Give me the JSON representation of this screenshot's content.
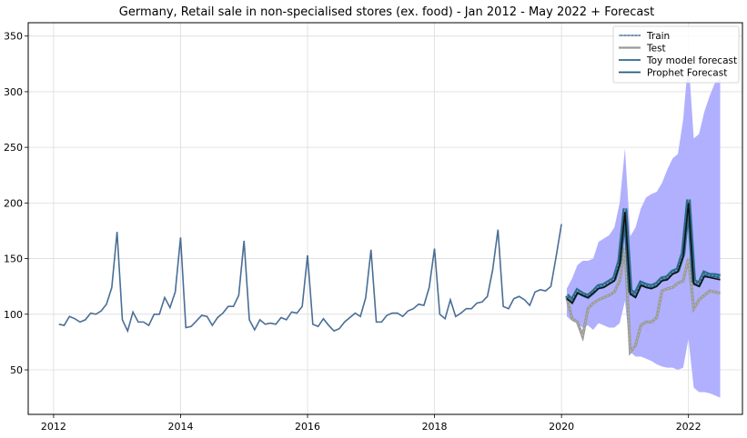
{
  "chart_data": {
    "type": "line",
    "title": "Germany, Retail sale in non-specialised stores (ex. food) - Jan 2012 - May 2022 + Forecast",
    "xlabel": "",
    "ylabel": "",
    "xlim": [
      2011.6,
      2022.85
    ],
    "ylim": [
      10,
      362
    ],
    "x_ticks": [
      2012,
      2014,
      2016,
      2018,
      2020,
      2022
    ],
    "y_ticks": [
      50,
      100,
      150,
      200,
      250,
      300,
      350
    ],
    "grid": true,
    "legend_position": "top-right",
    "legend": [
      "Train",
      "Test",
      "Toy model forecast",
      "Prophet Forecast"
    ],
    "colors": {
      "train": "#4a6e96",
      "test": "#9a9a9a",
      "toy": "#2c6a8c",
      "prophet": "#1f5a80",
      "interval": "#b0b0ff",
      "black_forecast": "#111111"
    },
    "series": [
      {
        "name": "Train",
        "x_start": 2012.083,
        "x_step": 0.08333,
        "values": [
          91,
          90,
          98,
          96,
          93,
          95,
          101,
          100,
          103,
          109,
          124,
          174,
          95,
          85,
          102,
          93,
          93,
          90,
          100,
          100,
          115,
          106,
          120,
          169,
          88,
          89,
          94,
          99,
          98,
          90,
          97,
          101,
          107,
          107,
          117,
          166,
          95,
          86,
          95,
          91,
          92,
          91,
          97,
          95,
          102,
          101,
          107,
          153,
          91,
          89,
          96,
          90,
          85,
          87,
          93,
          97,
          101,
          98,
          115,
          158,
          93,
          93,
          99,
          101,
          101,
          98,
          103,
          105,
          109,
          108,
          124,
          159,
          100,
          96,
          113,
          98,
          101,
          105,
          105,
          110,
          111,
          116,
          140,
          176,
          107,
          105,
          114,
          116,
          113,
          108,
          120,
          122,
          121,
          125,
          152,
          181
        ]
      },
      {
        "name": "Test",
        "x_start": 2020.083,
        "x_step": 0.08333,
        "values": [
          115,
          96,
          93,
          80,
          105,
          110,
          113,
          115,
          117,
          120,
          130,
          160,
          66,
          72,
          90,
          93,
          93,
          97,
          121,
          123,
          124,
          128,
          130,
          150,
          105,
          113,
          117,
          121,
          120,
          119
        ]
      },
      {
        "name": "Toy model forecast",
        "x_start": 2020.083,
        "x_step": 0.08333,
        "values": [
          117,
          112,
          121,
          118,
          116,
          120,
          125,
          126,
          129,
          132,
          148,
          195,
          121,
          118,
          128,
          126,
          125,
          127,
          132,
          133,
          138,
          140,
          155,
          203,
          130,
          127,
          137,
          135,
          135,
          134
        ]
      },
      {
        "name": "Prophet Forecast",
        "x_start": 2020.083,
        "x_step": 0.08333,
        "values": [
          114,
          110,
          119,
          117,
          115,
          119,
          123,
          124,
          127,
          130,
          145,
          192,
          118,
          115,
          126,
          124,
          123,
          125,
          130,
          131,
          136,
          138,
          152,
          200,
          127,
          125,
          134,
          133,
          132,
          131
        ]
      }
    ],
    "confidence_interval": {
      "x_start": 2020.083,
      "x_step": 0.08333,
      "upper": [
        123,
        132,
        144,
        148,
        148,
        150,
        165,
        168,
        171,
        178,
        200,
        249,
        170,
        178,
        195,
        205,
        208,
        210,
        218,
        230,
        240,
        244,
        275,
        330,
        258,
        262,
        282,
        296,
        308,
        312
      ],
      "lower": [
        98,
        94,
        92,
        88,
        90,
        86,
        92,
        90,
        88,
        88,
        92,
        112,
        66,
        62,
        62,
        60,
        58,
        55,
        53,
        52,
        52,
        50,
        52,
        78,
        34,
        30,
        30,
        29,
        27,
        25
      ]
    }
  }
}
